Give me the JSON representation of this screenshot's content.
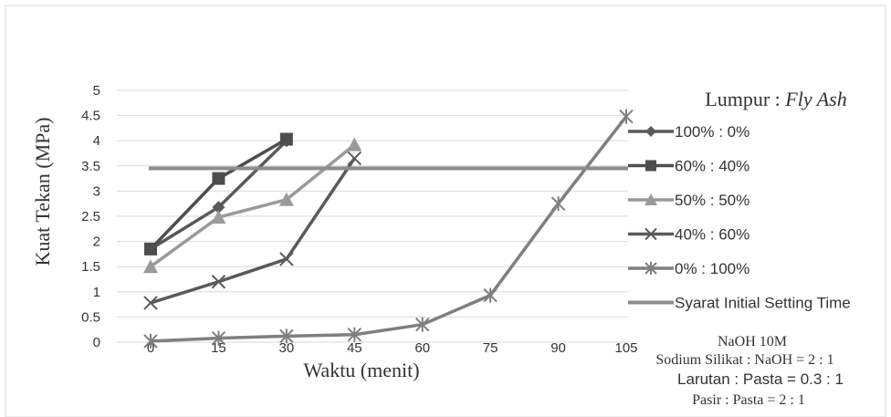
{
  "chart_data": {
    "type": "line",
    "title": "",
    "xlabel": "Waktu (menit)",
    "ylabel": "Kuat Tekan (MPa)",
    "x": [
      0,
      15,
      30,
      45,
      60,
      75,
      90,
      105
    ],
    "xlim": [
      0,
      105
    ],
    "ylim": [
      0,
      5
    ],
    "yticks": [
      "0",
      "0.5",
      "1",
      "1.5",
      "2",
      "2.5",
      "3",
      "3.5",
      "4",
      "4.5",
      "5"
    ],
    "xticks": [
      "0",
      "15",
      "30",
      "45",
      "60",
      "75",
      "90",
      "105"
    ],
    "grid": "horizontal",
    "legend_position": "right",
    "legend_title_prefix": "Lumpur : ",
    "legend_title_italic": "Fly Ash",
    "series": [
      {
        "name": "100% : 0%",
        "marker": "diamond",
        "color": "#595959",
        "points": [
          [
            0,
            1.85
          ],
          [
            15,
            2.68
          ],
          [
            30,
            4.0
          ]
        ]
      },
      {
        "name": "60% : 40%",
        "marker": "square",
        "color": "#4d4d4d",
        "points": [
          [
            0,
            1.85
          ],
          [
            15,
            3.25
          ],
          [
            30,
            4.03
          ]
        ]
      },
      {
        "name": "50% : 50%",
        "marker": "triangle",
        "color": "#9a9a9a",
        "points": [
          [
            0,
            1.5
          ],
          [
            15,
            2.48
          ],
          [
            30,
            2.83
          ],
          [
            45,
            3.92
          ]
        ]
      },
      {
        "name": "40% : 60%",
        "marker": "x",
        "color": "#5a5a5a",
        "points": [
          [
            0,
            0.78
          ],
          [
            15,
            1.2
          ],
          [
            30,
            1.65
          ],
          [
            45,
            3.65
          ]
        ]
      },
      {
        "name": "0% : 100%",
        "marker": "star",
        "color": "#7f7f7f",
        "points": [
          [
            0,
            0.02
          ],
          [
            15,
            0.08
          ],
          [
            30,
            0.12
          ],
          [
            45,
            0.15
          ],
          [
            60,
            0.35
          ],
          [
            75,
            0.93
          ],
          [
            90,
            2.75
          ],
          [
            105,
            4.48
          ]
        ]
      },
      {
        "name": "Syarat Initial Setting Time",
        "marker": "none",
        "color": "#8c8c8c",
        "kind": "hline",
        "y": 3.45
      }
    ],
    "annotations": [
      "NaOH 10M",
      "Sodium Silikat : NaOH = 2 : 1",
      "Larutan : Pasta =  0.3 : 1",
      "Pasir : Pasta = 2 : 1"
    ]
  }
}
